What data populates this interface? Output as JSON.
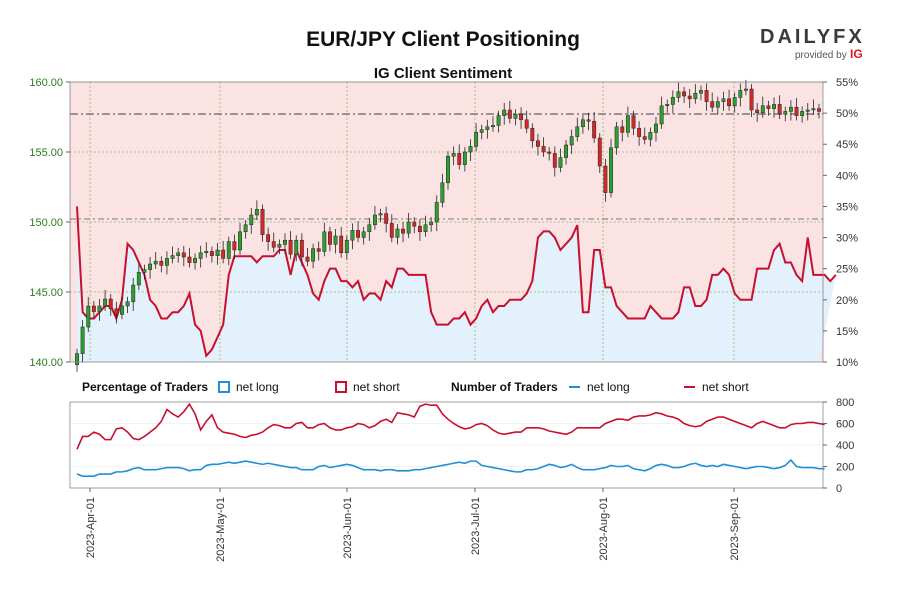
{
  "chart_data": {
    "type": "candlestick",
    "title": "EUR/JPY Client Positioning",
    "subtitle": "IG Client Sentiment",
    "logo": {
      "brand": "DAILYFX",
      "provided_by": "provided by",
      "ig": "IG"
    },
    "left_axis": {
      "ticks": [
        "160.00",
        "155.00",
        "150.00",
        "145.00",
        "140.00"
      ],
      "ylim": [
        140,
        160
      ]
    },
    "right_axis": {
      "ticks": [
        "55%",
        "50%",
        "45%",
        "40%",
        "35%",
        "30%",
        "25%",
        "20%",
        "15%",
        "10%"
      ],
      "ylim": [
        10,
        55
      ]
    },
    "lower_axis": {
      "ticks": [
        "800",
        "600",
        "400",
        "200",
        "0"
      ],
      "ylim": [
        0,
        800
      ]
    },
    "x_dates": [
      "2023-Apr-01",
      "2023-May-01",
      "2023-Jun-01",
      "2023-Jul-01",
      "2023-Aug-01",
      "2023-Sep-01"
    ],
    "legend": {
      "pct_title": "Percentage of Traders",
      "num_title": "Number of Traders",
      "net_long": "net long",
      "net_short": "net short"
    },
    "colors": {
      "long": "#1e90d6",
      "short": "#c8102e",
      "up": "#2ca02c",
      "down": "#d62728",
      "axis_green": "#2e7d1f"
    },
    "price_close": [
      140.6,
      142.5,
      144.0,
      143.6,
      144.0,
      144.5,
      143.8,
      143.4,
      144.0,
      144.3,
      145.5,
      146.4,
      146.6,
      147.0,
      147.2,
      146.9,
      147.4,
      147.6,
      147.8,
      147.5,
      147.1,
      147.4,
      147.8,
      147.9,
      147.6,
      148.0,
      147.4,
      148.6,
      148.0,
      149.3,
      149.8,
      150.5,
      150.9,
      149.1,
      148.6,
      148.2,
      148.4,
      148.7,
      147.7,
      148.7,
      147.5,
      147.2,
      148.1,
      147.9,
      149.3,
      148.4,
      149.0,
      147.8,
      148.7,
      149.4,
      148.9,
      149.3,
      149.8,
      150.5,
      150.6,
      149.9,
      148.9,
      149.5,
      149.2,
      150.0,
      149.7,
      149.3,
      149.8,
      150.0,
      151.4,
      152.8,
      154.7,
      154.9,
      154.1,
      155.0,
      155.4,
      156.4,
      156.6,
      156.8,
      156.9,
      157.6,
      158.0,
      157.4,
      157.7,
      157.3,
      156.7,
      155.8,
      155.4,
      155.0,
      154.9,
      153.9,
      154.6,
      155.5,
      156.1,
      156.8,
      157.3,
      157.2,
      156.0,
      154.0,
      152.1,
      155.3,
      156.8,
      156.4,
      157.6,
      156.7,
      156.1,
      155.9,
      156.4,
      157.0,
      158.3,
      158.4,
      158.9,
      159.3,
      159.0,
      158.8,
      159.2,
      159.4,
      158.6,
      158.2,
      158.6,
      158.8,
      158.3,
      158.9,
      159.4,
      159.5,
      158.0,
      157.8,
      158.3,
      158.1,
      158.4,
      157.7,
      157.9,
      158.2,
      157.6,
      157.9,
      158.0,
      158.1,
      157.9
    ],
    "long_pct": [
      35,
      18,
      17,
      17,
      18,
      19,
      19,
      17,
      20,
      29,
      28,
      26,
      24,
      20,
      19,
      17,
      17,
      18,
      18,
      19,
      21,
      16,
      15,
      11,
      12,
      14,
      16,
      24,
      27,
      27,
      27,
      27,
      26,
      27,
      27,
      27,
      28,
      28,
      24,
      28,
      26,
      24,
      21,
      20,
      23,
      25,
      25,
      23,
      23,
      22,
      23,
      20,
      21,
      21,
      20,
      23,
      22,
      25,
      25,
      24,
      24,
      24,
      24,
      18,
      16,
      16,
      16,
      17,
      17,
      18,
      16,
      17,
      19,
      20,
      18,
      19,
      19,
      20,
      20,
      20,
      21,
      23,
      30,
      31,
      31,
      30,
      28,
      29,
      30,
      32,
      18,
      18,
      28,
      28,
      22,
      22,
      19,
      18,
      17,
      17,
      17,
      17,
      19,
      18,
      17,
      17,
      17,
      18,
      22,
      22,
      19,
      19,
      20,
      24,
      24,
      25,
      24,
      21,
      20,
      20,
      20,
      25,
      25,
      25,
      28,
      29,
      26,
      26,
      24,
      23,
      30,
      24,
      24,
      24,
      23,
      24
    ],
    "long_counts": [
      130,
      110,
      110,
      110,
      130,
      130,
      130,
      150,
      150,
      160,
      180,
      190,
      170,
      170,
      170,
      180,
      190,
      190,
      190,
      180,
      160,
      170,
      170,
      210,
      220,
      220,
      230,
      240,
      230,
      240,
      250,
      240,
      230,
      220,
      230,
      220,
      210,
      200,
      190,
      190,
      170,
      170,
      170,
      200,
      210,
      190,
      200,
      210,
      220,
      210,
      190,
      170,
      170,
      170,
      160,
      170,
      170,
      160,
      160,
      160,
      170,
      170,
      180,
      190,
      200,
      210,
      220,
      230,
      240,
      230,
      250,
      250,
      210,
      200,
      190,
      180,
      170,
      160,
      150,
      150,
      170,
      170,
      180,
      200,
      220,
      210,
      190,
      200,
      220,
      190,
      170,
      170,
      170,
      180,
      190,
      210,
      200,
      200,
      210,
      180,
      170,
      160,
      180,
      210,
      220,
      210,
      190,
      190,
      200,
      220,
      230,
      210,
      200,
      210,
      200,
      220,
      210,
      200,
      190,
      180,
      190,
      200,
      200,
      190,
      180,
      190,
      210,
      260,
      200,
      190,
      190,
      190,
      180,
      180
    ],
    "short_counts": [
      360,
      480,
      480,
      520,
      500,
      450,
      450,
      550,
      560,
      520,
      460,
      450,
      480,
      520,
      560,
      620,
      730,
      690,
      660,
      710,
      780,
      690,
      540,
      620,
      680,
      560,
      520,
      510,
      500,
      480,
      470,
      490,
      500,
      520,
      560,
      590,
      580,
      560,
      560,
      600,
      610,
      560,
      560,
      590,
      600,
      560,
      540,
      540,
      560,
      570,
      600,
      590,
      560,
      580,
      620,
      640,
      610,
      700,
      690,
      680,
      660,
      760,
      780,
      770,
      770,
      690,
      640,
      600,
      570,
      550,
      560,
      590,
      600,
      580,
      540,
      510,
      500,
      510,
      520,
      520,
      560,
      560,
      560,
      550,
      530,
      520,
      510,
      500,
      520,
      560,
      560,
      560,
      560,
      560,
      600,
      620,
      640,
      640,
      630,
      660,
      670,
      670,
      680,
      700,
      690,
      670,
      660,
      640,
      600,
      580,
      570,
      580,
      620,
      640,
      660,
      660,
      640,
      620,
      600,
      580,
      560,
      600,
      620,
      600,
      580,
      560,
      560,
      590,
      600,
      600,
      610,
      610,
      600,
      590
    ]
  }
}
